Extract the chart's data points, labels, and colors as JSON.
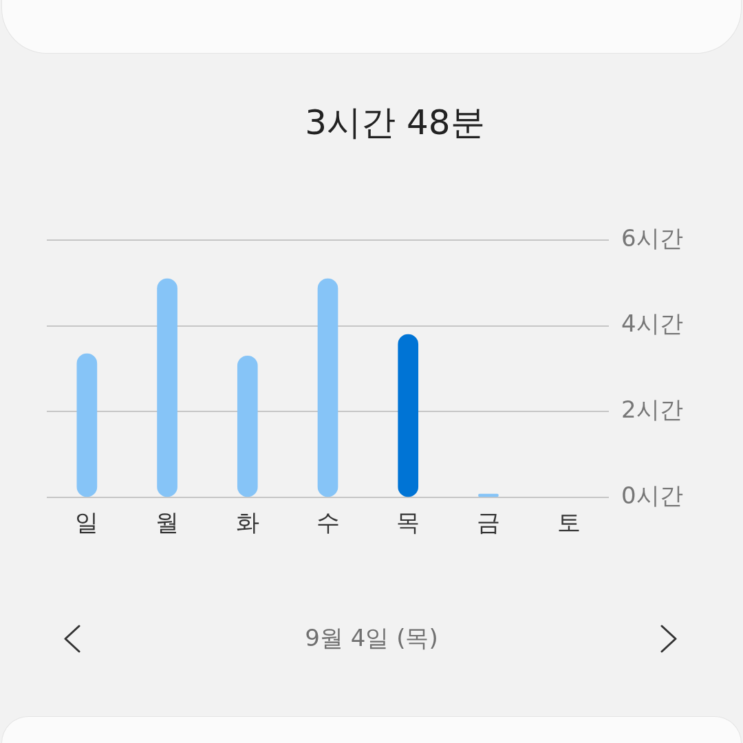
{
  "chart_data": {
    "type": "bar",
    "title": "3시간 48분",
    "categories": [
      "일",
      "월",
      "화",
      "수",
      "목",
      "금",
      "토"
    ],
    "values": [
      3.35,
      5.1,
      3.3,
      5.1,
      3.8,
      0.08,
      null
    ],
    "colors": [
      "#86c4f7",
      "#86c4f7",
      "#86c4f7",
      "#86c4f7",
      "#0074d5",
      "#86c4f7",
      "#86c4f7"
    ],
    "ylim": [
      0,
      6
    ],
    "yticks": [
      {
        "value": 0,
        "label": "0시간"
      },
      {
        "value": 2,
        "label": "2시간"
      },
      {
        "value": 4,
        "label": "4시간"
      },
      {
        "value": 6,
        "label": "6시간"
      }
    ],
    "grid": "y",
    "annotations": [
      "9월 4일 (목)"
    ]
  }
}
